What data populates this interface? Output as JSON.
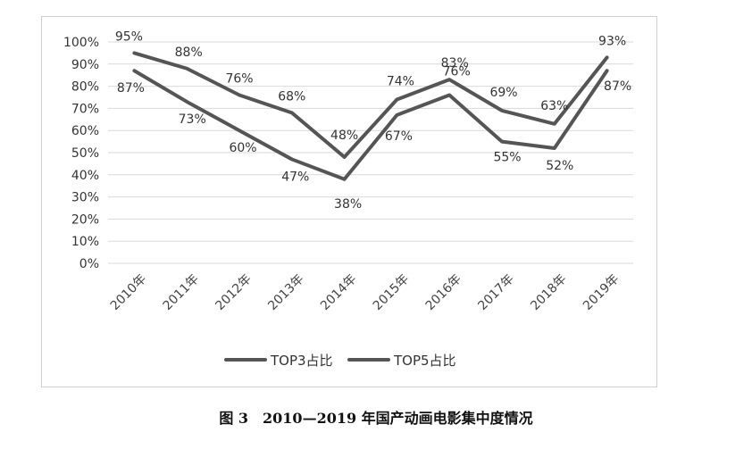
{
  "caption": "图 3　2010—2019 年国产动画电影集中度情况",
  "chart_data": {
    "type": "line",
    "categories": [
      "2010年",
      "2011年",
      "2012年",
      "2013年",
      "2014年",
      "2015年",
      "2016年",
      "2017年",
      "2018年",
      "2019年"
    ],
    "y_ticks": [
      "0%",
      "10%",
      "20%",
      "30%",
      "40%",
      "50%",
      "60%",
      "70%",
      "80%",
      "90%",
      "100%"
    ],
    "ylim": [
      0,
      100
    ],
    "grid": true,
    "legend_position": "bottom",
    "series": [
      {
        "name": "TOP3占比",
        "values": [
          87,
          73,
          60,
          47,
          38,
          67,
          76,
          55,
          52,
          87
        ],
        "labels": [
          "87%",
          "73%",
          "60%",
          "47%",
          "38%",
          "67%",
          "76%",
          "55%",
          "52%",
          "87%"
        ],
        "color": "#555555"
      },
      {
        "name": "TOP5占比",
        "values": [
          95,
          88,
          76,
          68,
          48,
          74,
          83,
          69,
          63,
          93
        ],
        "labels": [
          "95%",
          "88%",
          "76%",
          "68%",
          "48%",
          "74%",
          "83%",
          "69%",
          "63%",
          "93%"
        ],
        "color": "#555555"
      }
    ]
  }
}
